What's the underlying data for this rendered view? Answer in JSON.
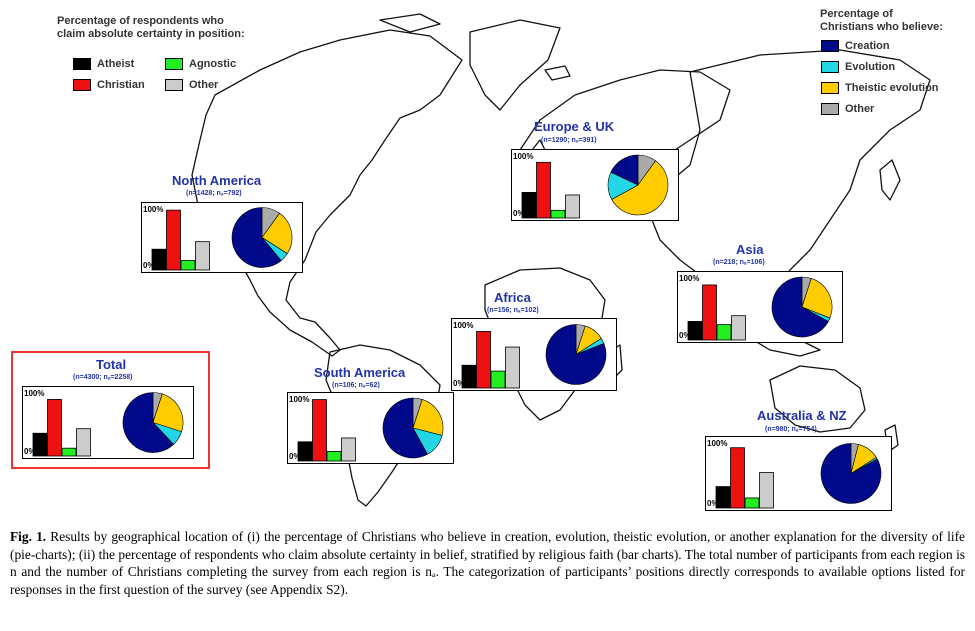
{
  "legend_bars": {
    "title_line1": "Percentage of respondents who",
    "title_line2": "claim absolute certainty in position:",
    "items": [
      {
        "label": "Atheist",
        "color": "#000000"
      },
      {
        "label": "Agnostic",
        "color": "#22ee22"
      },
      {
        "label": "Christian",
        "color": "#ee1111"
      },
      {
        "label": "Other",
        "color": "#cccccc"
      }
    ]
  },
  "legend_pies": {
    "title_line1": "Percentage of",
    "title_line2": "Christians who believe:",
    "items": [
      {
        "label": "Creation",
        "color": "#000a8a"
      },
      {
        "label": "Evolution",
        "color": "#22d6e6"
      },
      {
        "label": "Theistic evolution",
        "color": "#ffcc00"
      },
      {
        "label": "Other",
        "color": "#aaaaaa"
      }
    ]
  },
  "axis_labels": {
    "top": "100%",
    "bottom": "0%"
  },
  "chart_data": [
    {
      "id": "north-america",
      "type": "bar+pie",
      "title": "North America",
      "n_label": "(n=1428; nₐ=792)",
      "bar_categories": [
        "Atheist",
        "Christian",
        "Agnostic",
        "Other"
      ],
      "bar_values": [
        33,
        95,
        15,
        45
      ],
      "ylim": [
        0,
        100
      ],
      "pie_categories": [
        "Creation",
        "Evolution",
        "Theistic evolution",
        "Other"
      ],
      "pie_values": [
        61,
        5,
        24,
        10
      ]
    },
    {
      "id": "europe-uk",
      "type": "bar+pie",
      "title": "Europe & UK",
      "n_label": "(n=1290; nₐ=391)",
      "bar_categories": [
        "Atheist",
        "Christian",
        "Agnostic",
        "Other"
      ],
      "bar_values": [
        40,
        87,
        12,
        36
      ],
      "ylim": [
        0,
        100
      ],
      "pie_categories": [
        "Creation",
        "Evolution",
        "Theistic evolution",
        "Other"
      ],
      "pie_values": [
        18,
        15,
        57,
        10
      ]
    },
    {
      "id": "asia",
      "type": "bar+pie",
      "title": "Asia",
      "n_label": "(n=218; nₐ=106)",
      "bar_categories": [
        "Atheist",
        "Christian",
        "Agnostic",
        "Other"
      ],
      "bar_values": [
        29,
        86,
        24,
        38
      ],
      "ylim": [
        0,
        100
      ],
      "pie_categories": [
        "Creation",
        "Evolution",
        "Theistic evolution",
        "Other"
      ],
      "pie_values": [
        67,
        2,
        26,
        5
      ]
    },
    {
      "id": "africa",
      "type": "bar+pie",
      "title": "Africa",
      "n_label": "(n=156; nₐ=102)",
      "bar_categories": [
        "Atheist",
        "Christian",
        "Agnostic",
        "Other"
      ],
      "bar_values": [
        35,
        87,
        26,
        63
      ],
      "ylim": [
        0,
        100
      ],
      "pie_categories": [
        "Creation",
        "Evolution",
        "Theistic evolution",
        "Other"
      ],
      "pie_values": [
        81,
        3,
        11,
        5
      ]
    },
    {
      "id": "south-america",
      "type": "bar+pie",
      "title": "South America",
      "n_label": "(n=106; nₐ=62)",
      "bar_categories": [
        "Atheist",
        "Christian",
        "Agnostic",
        "Other"
      ],
      "bar_values": [
        30,
        96,
        15,
        36
      ],
      "ylim": [
        0,
        100
      ],
      "pie_categories": [
        "Creation",
        "Evolution",
        "Theistic evolution",
        "Other"
      ],
      "pie_values": [
        58,
        13,
        24,
        5
      ]
    },
    {
      "id": "australia-nz",
      "type": "bar+pie",
      "title": "Australia & NZ",
      "n_label": "(n=980; nₐ=754)",
      "bar_categories": [
        "Atheist",
        "Christian",
        "Agnostic",
        "Other"
      ],
      "bar_values": [
        32,
        90,
        15,
        53
      ],
      "ylim": [
        0,
        100
      ],
      "pie_categories": [
        "Creation",
        "Evolution",
        "Theistic evolution",
        "Other"
      ],
      "pie_values": [
        83,
        1,
        12,
        4
      ]
    },
    {
      "id": "total",
      "type": "bar+pie",
      "title": "Total",
      "n_label": "(n=4300; nₐ=2258)",
      "bar_categories": [
        "Atheist",
        "Christian",
        "Agnostic",
        "Other"
      ],
      "bar_values": [
        35,
        87,
        12,
        42
      ],
      "ylim": [
        0,
        100
      ],
      "pie_categories": [
        "Creation",
        "Evolution",
        "Theistic evolution",
        "Other"
      ],
      "pie_values": [
        62,
        8,
        25,
        5
      ]
    }
  ],
  "caption": {
    "label": "Fig. 1.",
    "text": "  Results by geographical location of (i) the percentage of Christians who believe in creation, evolution, theistic evolution, or another explanation for the diversity of life (pie-charts); (ii) the percentage of respondents who claim absolute certainty in belief, stratified by religious faith (bar charts). The total number of participants from each region is n and the number of Christians completing the survey from each region is nₐ. The categorization of participants’ positions directly corresponds to available options listed for responses in the first question of the survey (see Appendix S2)."
  }
}
